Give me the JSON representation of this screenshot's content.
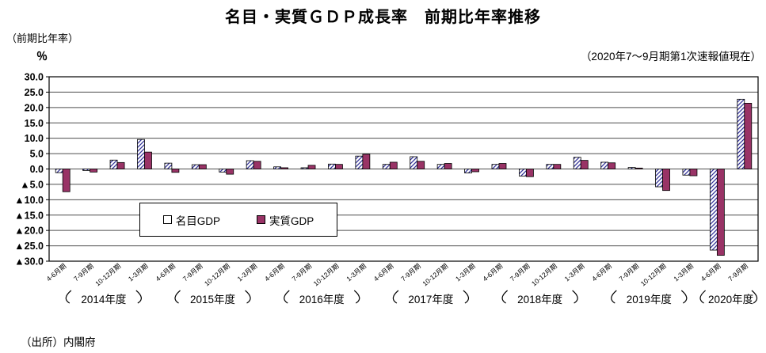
{
  "header": {
    "title": "名目・実質ＧＤＰ成長率　前期比年率推移",
    "y_axis_note": "（前期比年率）",
    "y_axis_unit": "％",
    "release_note": "（2020年7～9月期第1次速報値現在）"
  },
  "legend": {
    "nominal": "名目GDP",
    "real": "実質GDP"
  },
  "source": "（出所）内閣府",
  "colors": {
    "real_fill": "#993366",
    "hatch_stroke": "#333399",
    "bar_outline": "#000000",
    "grid": "#4d4d4d"
  },
  "chart_data": {
    "type": "bar",
    "title": "名目・実質ＧＤＰ成長率　前期比年率推移",
    "ylabel": "（前期比年率）％",
    "ylim": [
      -30,
      30
    ],
    "ytick_step": 5,
    "negative_prefix": "▲",
    "grid": true,
    "legend_position": "inside-lower-left",
    "quarter_labels": [
      "4-6月期",
      "7-9月期",
      "10-12月期",
      "1-3月期",
      "4-6月期",
      "7-9月期",
      "10-12月期",
      "1-3月期",
      "4-6月期",
      "7-9月期",
      "10-12月期",
      "1-3月期",
      "4-6月期",
      "7-9月期",
      "10-12月期",
      "1-3月期",
      "4-6月期",
      "7-9月期",
      "10-12月期",
      "1-3月期",
      "4-6月期",
      "7-9月期",
      "10-12月期",
      "1-3月期",
      "4-6月期",
      "7-9月期"
    ],
    "year_groups": [
      {
        "label": "2014年度",
        "quarters": 4
      },
      {
        "label": "2015年度",
        "quarters": 4
      },
      {
        "label": "2016年度",
        "quarters": 4
      },
      {
        "label": "2017年度",
        "quarters": 4
      },
      {
        "label": "2018年度",
        "quarters": 4
      },
      {
        "label": "2019年度",
        "quarters": 4
      },
      {
        "label": "2020年度",
        "quarters": 2
      }
    ],
    "series": [
      {
        "name": "名目GDP",
        "values": [
          -1.2,
          -0.5,
          2.9,
          9.6,
          1.9,
          1.4,
          -1.0,
          2.7,
          0.7,
          0.4,
          1.6,
          4.2,
          1.5,
          4.0,
          1.5,
          -1.3,
          1.5,
          -2.3,
          1.5,
          3.8,
          2.2,
          0.5,
          -5.8,
          -2.0,
          -26.4,
          22.7
        ]
      },
      {
        "name": "実質GDP",
        "values": [
          -7.4,
          -1.0,
          2.1,
          5.5,
          -1.1,
          1.4,
          -1.7,
          2.5,
          0.4,
          1.2,
          1.5,
          4.8,
          2.2,
          2.5,
          1.8,
          -0.9,
          1.8,
          -2.5,
          1.5,
          2.8,
          2.0,
          0.3,
          -7.0,
          -2.2,
          -28.1,
          21.4
        ]
      }
    ]
  }
}
